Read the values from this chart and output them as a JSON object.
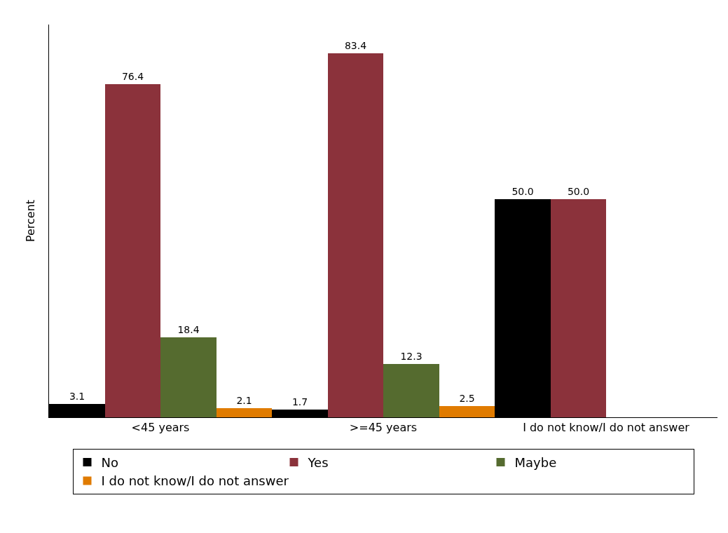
{
  "chart_data": {
    "type": "bar",
    "ylabel": "Percent",
    "categories": [
      "<45 years",
      ">=45 years",
      "I do not know/I do not answer"
    ],
    "series": [
      {
        "name": "No",
        "color": "#000000",
        "values": [
          3.1,
          1.7,
          50.0
        ],
        "value_labels": [
          "3.1",
          "1.7",
          "50.0"
        ]
      },
      {
        "name": "Yes",
        "color": "#8b323b",
        "values": [
          76.4,
          83.4,
          50.0
        ],
        "value_labels": [
          "76.4",
          "83.4",
          "50.0"
        ]
      },
      {
        "name": "Maybe",
        "color": "#556b2f",
        "values": [
          18.4,
          12.3,
          null
        ],
        "value_labels": [
          "18.4",
          "12.3",
          null
        ]
      },
      {
        "name": "I do not know/I do not answer",
        "color": "#e07b00",
        "values": [
          2.1,
          2.5,
          null
        ],
        "value_labels": [
          "2.1",
          "2.5",
          null
        ]
      }
    ],
    "tick_labels": "x",
    "legend": "bottom"
  }
}
